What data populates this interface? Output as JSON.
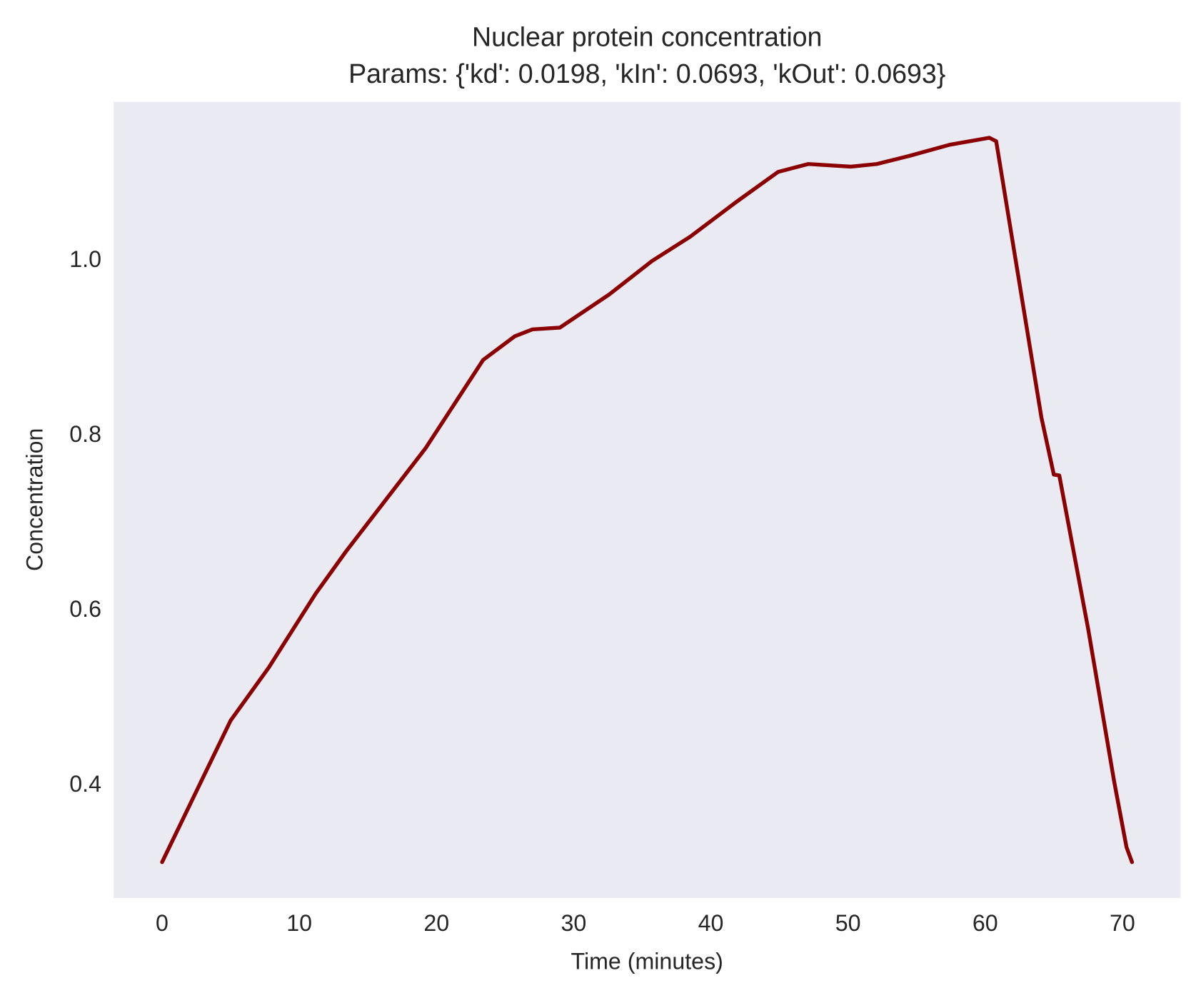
{
  "chart_data": {
    "type": "line",
    "title": "Nuclear protein concentration",
    "subtitle": "Params: {'kd': 0.0198, 'kIn': 0.0693, 'kOut': 0.0693}",
    "xlabel": "Time (minutes)",
    "ylabel": "Concentration",
    "x": [
      0,
      5.0,
      7.8,
      11.2,
      13.4,
      19.2,
      23.4,
      25.7,
      27.0,
      29.0,
      32.6,
      35.7,
      38.5,
      41.8,
      44.9,
      47.1,
      50.2,
      52.1,
      54.4,
      57.4,
      60.3,
      60.8,
      64.1,
      65.0,
      65.4,
      67.5,
      69.4,
      70.3,
      70.7
    ],
    "series": [
      {
        "name": "Nuclear protein",
        "color": "#8b0000",
        "values": [
          0.31,
          0.472,
          0.533,
          0.617,
          0.665,
          0.783,
          0.884,
          0.911,
          0.919,
          0.921,
          0.959,
          0.997,
          1.025,
          1.064,
          1.099,
          1.108,
          1.105,
          1.108,
          1.117,
          1.13,
          1.138,
          1.134,
          0.818,
          0.753,
          0.752,
          0.577,
          0.402,
          0.327,
          0.31
        ]
      }
    ],
    "xlim": [
      -3.53,
      74.23
    ],
    "ylim": [
      0.269,
      1.179
    ],
    "xticks": [
      0,
      10,
      20,
      30,
      40,
      50,
      60,
      70
    ],
    "yticks": [
      0.4,
      0.6,
      0.8,
      {
        "value": 1.0,
        "label": "1.0"
      }
    ],
    "grid": false,
    "background": "#eaeaf2"
  }
}
